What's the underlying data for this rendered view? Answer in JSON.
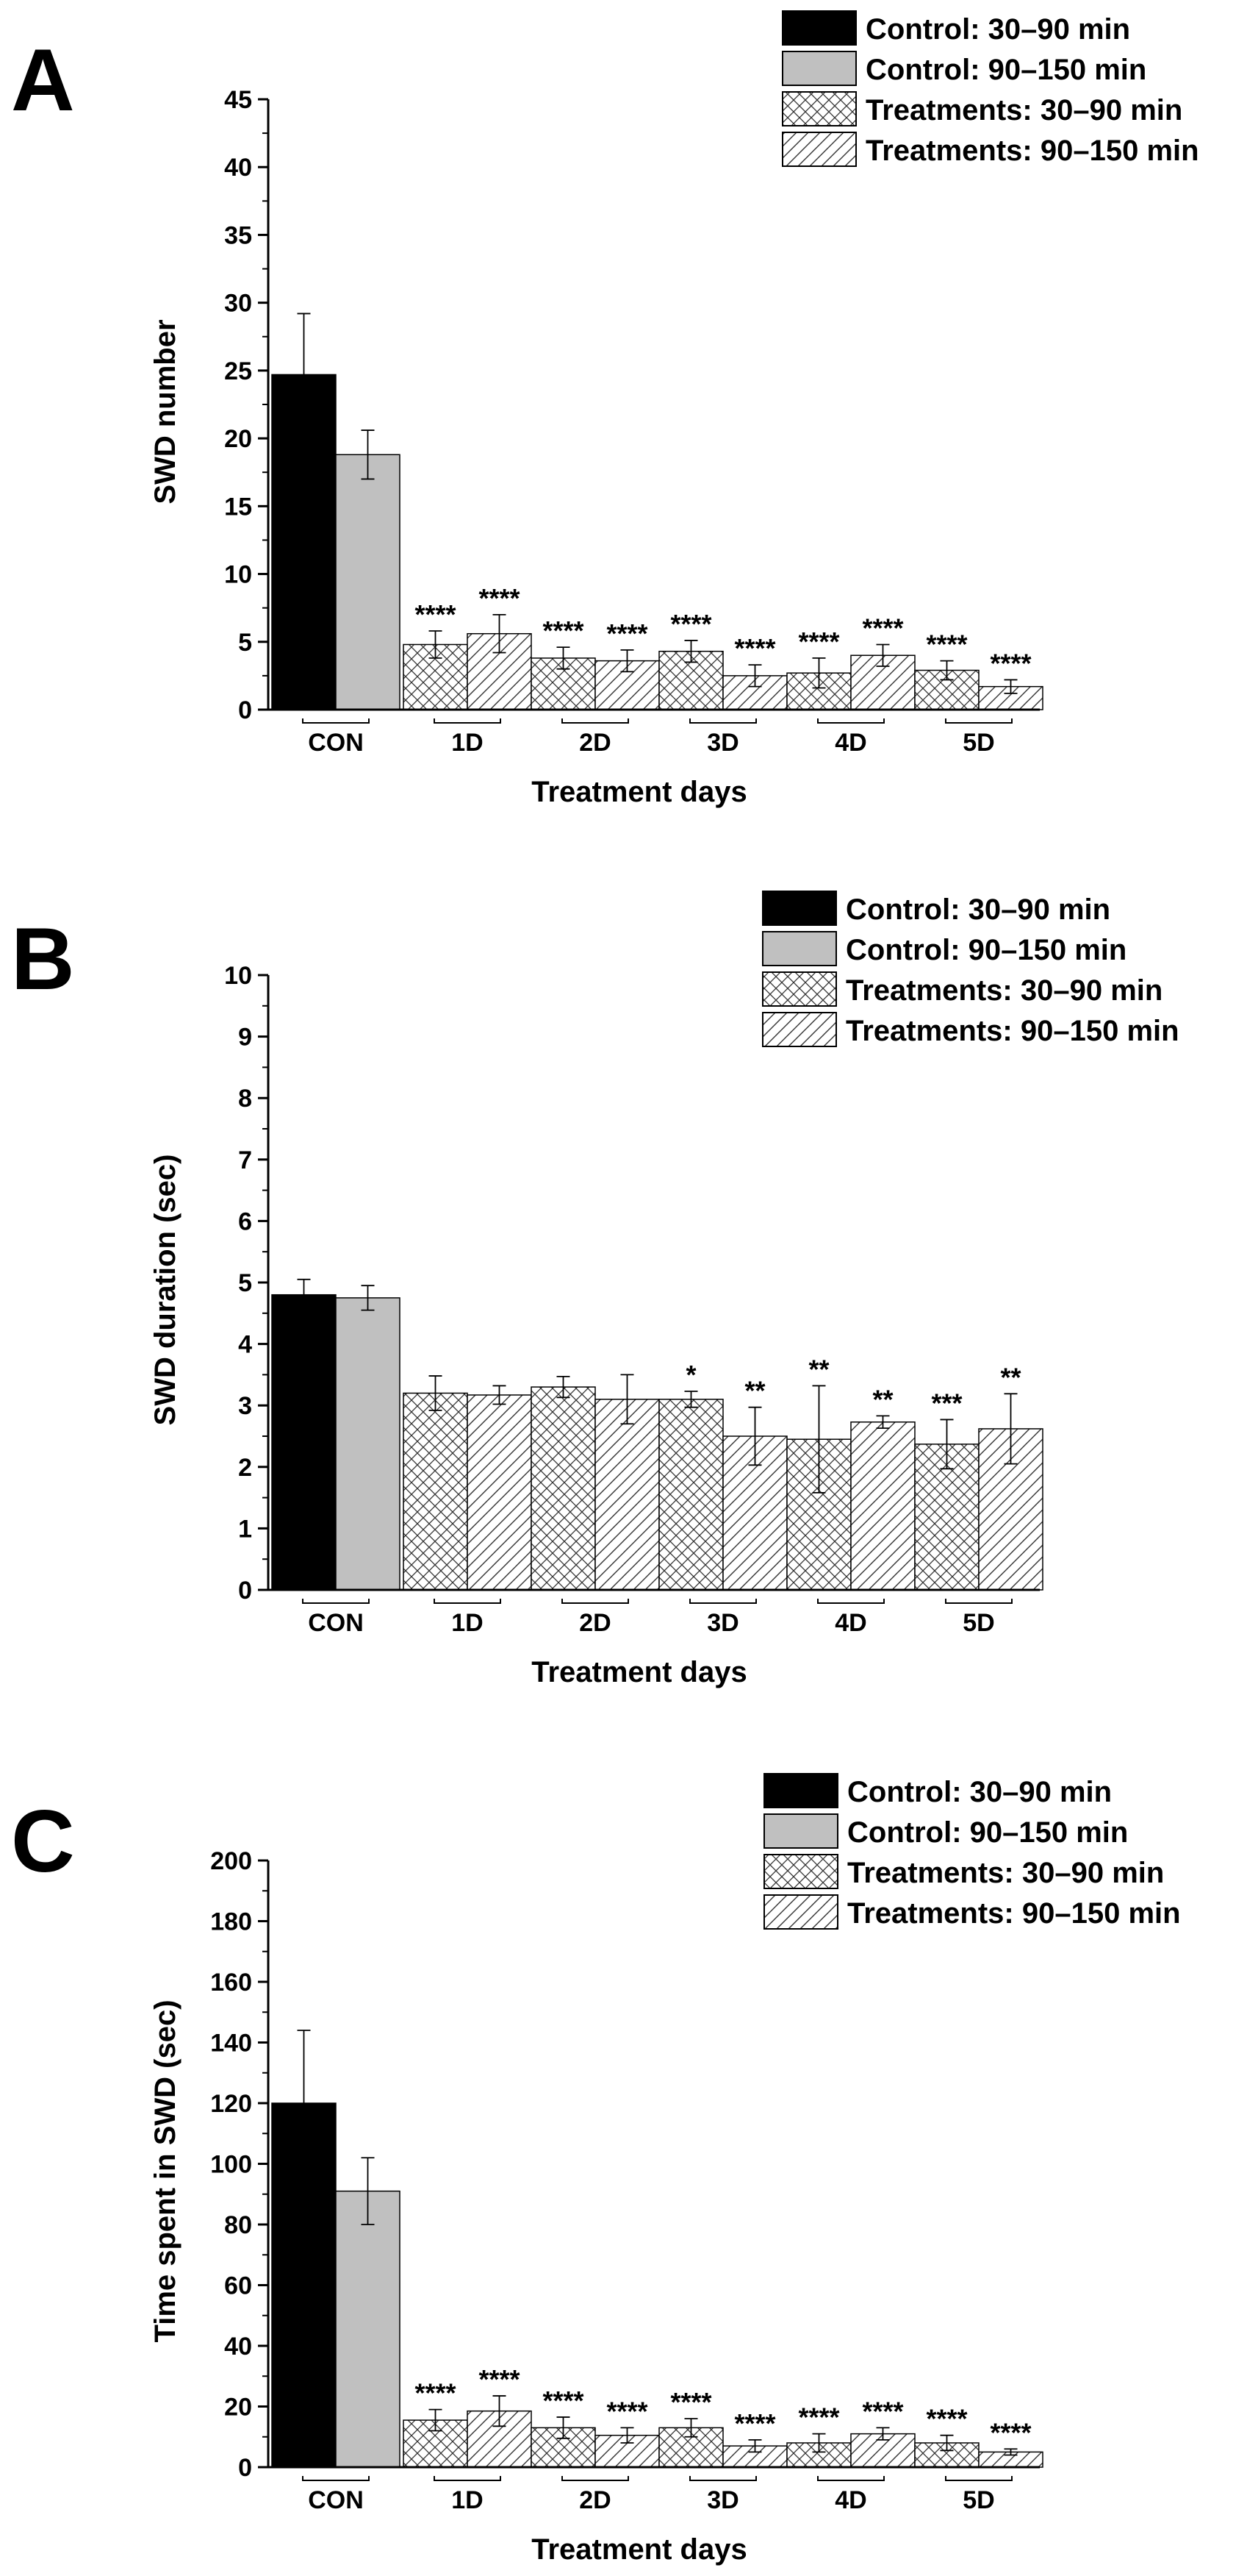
{
  "legend": [
    {
      "key": "control_early",
      "label": "Control: 30–90 min",
      "fill": "#000000"
    },
    {
      "key": "control_late",
      "label": "Control: 90–150 min",
      "fill": "#c0c0c0"
    },
    {
      "key": "treat_early",
      "label": "Treatments: 30–90 min",
      "pattern": "crosshatch"
    },
    {
      "key": "treat_late",
      "label": "Treatments: 90–150 min",
      "pattern": "diagonal"
    }
  ],
  "chart_data": [
    {
      "panel": "A",
      "type": "bar",
      "xlabel": "Treatment days",
      "ylabel": "SWD number",
      "ylim": [
        0,
        45
      ],
      "yticks": [
        0,
        5,
        10,
        15,
        20,
        25,
        30,
        35,
        40,
        45
      ],
      "categories": [
        "CON",
        "1D",
        "2D",
        "3D",
        "4D",
        "5D"
      ],
      "bars": [
        {
          "category": "CON",
          "series": "Control: 30–90 min",
          "value": 24.7,
          "error": 4.5,
          "sig": ""
        },
        {
          "category": "CON",
          "series": "Control: 90–150 min",
          "value": 18.8,
          "error": 1.8,
          "sig": ""
        },
        {
          "category": "1D",
          "series": "Treatments: 30–90 min",
          "value": 4.8,
          "error": 1.0,
          "sig": "****"
        },
        {
          "category": "1D",
          "series": "Treatments: 90–150 min",
          "value": 5.6,
          "error": 1.4,
          "sig": "****"
        },
        {
          "category": "2D",
          "series": "Treatments: 30–90 min",
          "value": 3.8,
          "error": 0.8,
          "sig": "****"
        },
        {
          "category": "2D",
          "series": "Treatments: 90–150 min",
          "value": 3.6,
          "error": 0.8,
          "sig": "****"
        },
        {
          "category": "3D",
          "series": "Treatments: 30–90 min",
          "value": 4.3,
          "error": 0.8,
          "sig": "****"
        },
        {
          "category": "3D",
          "series": "Treatments: 90–150 min",
          "value": 2.5,
          "error": 0.8,
          "sig": "****"
        },
        {
          "category": "4D",
          "series": "Treatments: 30–90 min",
          "value": 2.7,
          "error": 1.1,
          "sig": "****"
        },
        {
          "category": "4D",
          "series": "Treatments: 90–150 min",
          "value": 4.0,
          "error": 0.8,
          "sig": "****"
        },
        {
          "category": "5D",
          "series": "Treatments: 30–90 min",
          "value": 2.9,
          "error": 0.7,
          "sig": "****"
        },
        {
          "category": "5D",
          "series": "Treatments: 90–150 min",
          "value": 1.7,
          "error": 0.5,
          "sig": "****"
        }
      ]
    },
    {
      "panel": "B",
      "type": "bar",
      "xlabel": "Treatment days",
      "ylabel": "SWD duration (sec)",
      "ylim": [
        0,
        10
      ],
      "yticks": [
        0,
        1,
        2,
        3,
        4,
        5,
        6,
        7,
        8,
        9,
        10
      ],
      "categories": [
        "CON",
        "1D",
        "2D",
        "3D",
        "4D",
        "5D"
      ],
      "bars": [
        {
          "category": "CON",
          "series": "Control: 30–90 min",
          "value": 4.8,
          "error": 0.25,
          "sig": ""
        },
        {
          "category": "CON",
          "series": "Control: 90–150 min",
          "value": 4.75,
          "error": 0.2,
          "sig": ""
        },
        {
          "category": "1D",
          "series": "Treatments: 30–90 min",
          "value": 3.2,
          "error": 0.28,
          "sig": ""
        },
        {
          "category": "1D",
          "series": "Treatments: 90–150 min",
          "value": 3.17,
          "error": 0.15,
          "sig": ""
        },
        {
          "category": "2D",
          "series": "Treatments: 30–90 min",
          "value": 3.3,
          "error": 0.17,
          "sig": ""
        },
        {
          "category": "2D",
          "series": "Treatments: 90–150 min",
          "value": 3.1,
          "error": 0.4,
          "sig": ""
        },
        {
          "category": "3D",
          "series": "Treatments: 30–90 min",
          "value": 3.1,
          "error": 0.13,
          "sig": "*"
        },
        {
          "category": "3D",
          "series": "Treatments: 90–150 min",
          "value": 2.5,
          "error": 0.47,
          "sig": "**"
        },
        {
          "category": "4D",
          "series": "Treatments: 30–90 min",
          "value": 2.45,
          "error": 0.87,
          "sig": "**"
        },
        {
          "category": "4D",
          "series": "Treatments: 90–150 min",
          "value": 2.73,
          "error": 0.1,
          "sig": "**"
        },
        {
          "category": "5D",
          "series": "Treatments: 30–90 min",
          "value": 2.37,
          "error": 0.4,
          "sig": "***"
        },
        {
          "category": "5D",
          "series": "Treatments: 90–150 min",
          "value": 2.62,
          "error": 0.57,
          "sig": "**"
        }
      ]
    },
    {
      "panel": "C",
      "type": "bar",
      "xlabel": "Treatment days",
      "ylabel": "Time spent in SWD (sec)",
      "ylim": [
        0,
        200
      ],
      "yticks": [
        0,
        20,
        40,
        60,
        80,
        100,
        120,
        140,
        160,
        180,
        200
      ],
      "categories": [
        "CON",
        "1D",
        "2D",
        "3D",
        "4D",
        "5D"
      ],
      "bars": [
        {
          "category": "CON",
          "series": "Control: 30–90 min",
          "value": 120,
          "error": 24,
          "sig": ""
        },
        {
          "category": "CON",
          "series": "Control: 90–150 min",
          "value": 91,
          "error": 11,
          "sig": ""
        },
        {
          "category": "1D",
          "series": "Treatments: 30–90 min",
          "value": 15.5,
          "error": 3.5,
          "sig": "****"
        },
        {
          "category": "1D",
          "series": "Treatments: 90–150 min",
          "value": 18.5,
          "error": 5,
          "sig": "****"
        },
        {
          "category": "2D",
          "series": "Treatments: 30–90 min",
          "value": 13,
          "error": 3.5,
          "sig": "****"
        },
        {
          "category": "2D",
          "series": "Treatments: 90–150 min",
          "value": 10.5,
          "error": 2.5,
          "sig": "****"
        },
        {
          "category": "3D",
          "series": "Treatments: 30–90 min",
          "value": 13,
          "error": 3,
          "sig": "****"
        },
        {
          "category": "3D",
          "series": "Treatments: 90–150 min",
          "value": 7,
          "error": 2,
          "sig": "****"
        },
        {
          "category": "4D",
          "series": "Treatments: 30–90 min",
          "value": 8,
          "error": 3,
          "sig": "****"
        },
        {
          "category": "4D",
          "series": "Treatments: 90–150 min",
          "value": 11,
          "error": 2,
          "sig": "****"
        },
        {
          "category": "5D",
          "series": "Treatments: 30–90 min",
          "value": 8,
          "error": 2.5,
          "sig": "****"
        },
        {
          "category": "5D",
          "series": "Treatments: 90–150 min",
          "value": 5,
          "error": 1,
          "sig": "****"
        }
      ]
    }
  ]
}
